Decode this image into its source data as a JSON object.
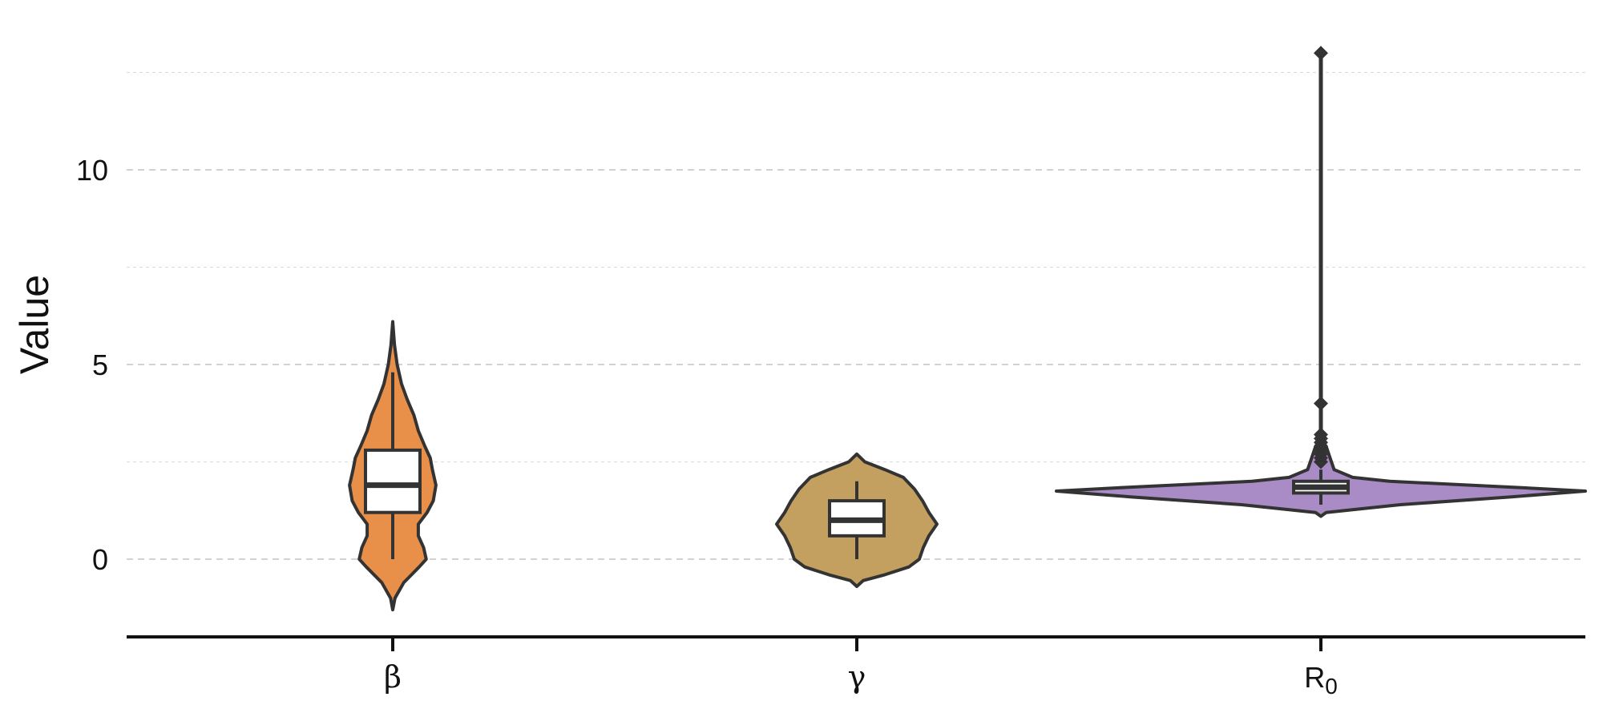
{
  "chart_data": {
    "type": "violin",
    "title": "",
    "xlabel": "",
    "ylabel": "Value",
    "ylim": [
      -2.0,
      13.4
    ],
    "yticks": [
      0,
      5,
      10
    ],
    "minor_yticks": [
      2.5,
      7.5,
      12.5
    ],
    "grid": true,
    "legend": "none",
    "categories": [
      {
        "label": "β",
        "color": "#E8904A",
        "box": {
          "q1": 1.2,
          "median": 1.9,
          "q3": 2.8,
          "whisker_low": 0.0,
          "whisker_high": 4.8
        },
        "violin_min": -1.3,
        "violin_max": 6.1,
        "density": [
          [
            -1.3,
            0.0
          ],
          [
            -1.0,
            0.05
          ],
          [
            -0.6,
            0.25
          ],
          [
            -0.2,
            0.6
          ],
          [
            0.0,
            0.76
          ],
          [
            0.3,
            0.7
          ],
          [
            0.6,
            0.58
          ],
          [
            0.9,
            0.58
          ],
          [
            1.2,
            0.78
          ],
          [
            1.5,
            0.92
          ],
          [
            1.9,
            0.98
          ],
          [
            2.3,
            0.9
          ],
          [
            2.6,
            0.85
          ],
          [
            2.9,
            0.73
          ],
          [
            3.3,
            0.58
          ],
          [
            3.7,
            0.48
          ],
          [
            4.1,
            0.33
          ],
          [
            4.5,
            0.2
          ],
          [
            5.0,
            0.1
          ],
          [
            5.5,
            0.04
          ],
          [
            6.1,
            0.0
          ]
        ]
      },
      {
        "label": "γ",
        "color": "#C4A060",
        "box": {
          "q1": 0.6,
          "median": 1.0,
          "q3": 1.5,
          "whisker_low": 0.0,
          "whisker_high": 2.0
        },
        "violin_min": -0.7,
        "violin_max": 2.7,
        "density": [
          [
            -0.7,
            0.0
          ],
          [
            -0.55,
            0.08
          ],
          [
            -0.4,
            0.35
          ],
          [
            -0.2,
            0.65
          ],
          [
            0.0,
            0.78
          ],
          [
            0.3,
            0.83
          ],
          [
            0.6,
            0.9
          ],
          [
            0.9,
            1.0
          ],
          [
            1.2,
            0.9
          ],
          [
            1.5,
            0.82
          ],
          [
            1.8,
            0.72
          ],
          [
            2.1,
            0.58
          ],
          [
            2.3,
            0.35
          ],
          [
            2.5,
            0.1
          ],
          [
            2.7,
            0.0
          ]
        ]
      },
      {
        "label": "R",
        "label_sub": "0",
        "color": "#A98BC6",
        "box": {
          "q1": 1.7,
          "median": 1.85,
          "q3": 2.0,
          "whisker_low": 1.4,
          "whisker_high": 2.3
        },
        "violin_min": 1.1,
        "violin_max": 13.0,
        "density": [
          [
            1.1,
            0.0
          ],
          [
            1.2,
            0.02
          ],
          [
            1.4,
            0.3
          ],
          [
            1.6,
            0.72
          ],
          [
            1.75,
            1.0
          ],
          [
            1.85,
            0.72
          ],
          [
            2.0,
            0.26
          ],
          [
            2.1,
            0.12
          ],
          [
            2.3,
            0.05
          ],
          [
            2.6,
            0.035
          ],
          [
            2.9,
            0.02
          ],
          [
            3.1,
            0.0
          ]
        ],
        "outliers": [
          2.5,
          2.6,
          2.7,
          2.8,
          2.9,
          3.0,
          3.1,
          3.2,
          4.0,
          13.0
        ],
        "outlier_range": [
          2.4,
          13.0
        ]
      }
    ]
  }
}
